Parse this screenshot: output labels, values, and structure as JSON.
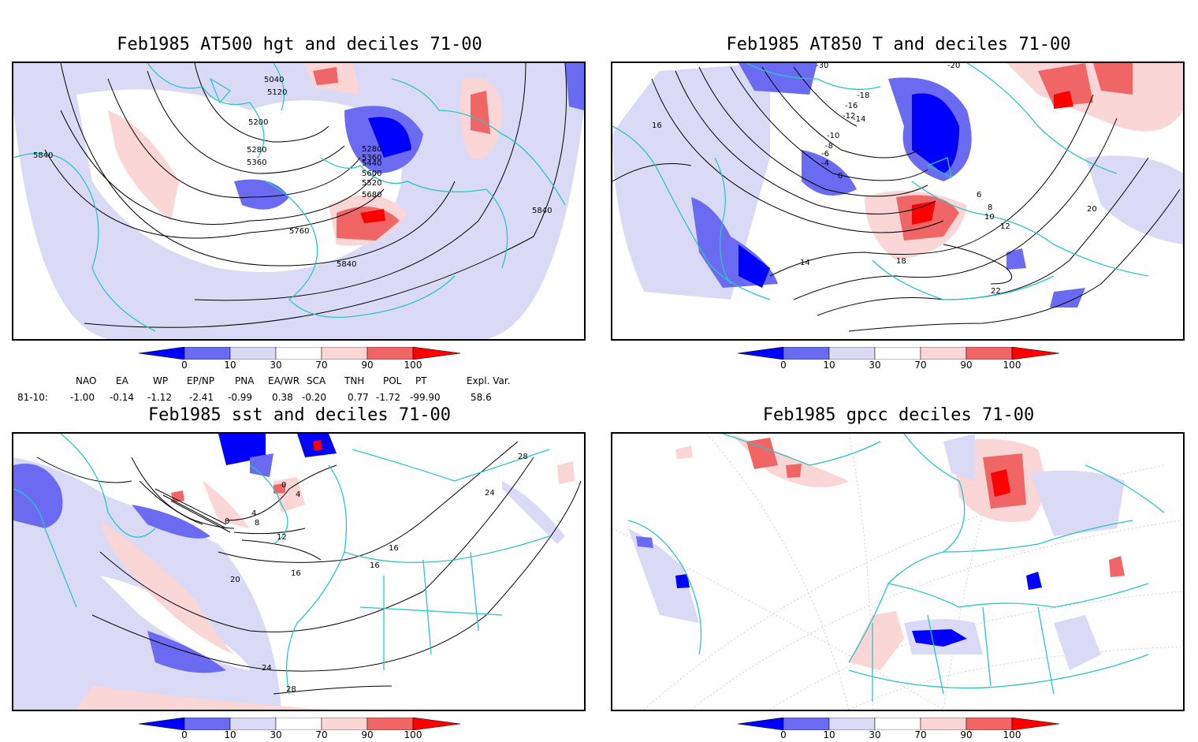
{
  "panels": [
    {
      "title": "Feb1985 AT500 hgt and deciles 71-00",
      "contour_labels": [
        "5040",
        "5120",
        "5200",
        "5280",
        "5360",
        "5440",
        "5520",
        "5600",
        "5680",
        "5760",
        "5840",
        "5280",
        "5360",
        "5840",
        "5840"
      ]
    },
    {
      "title": "Feb1985 AT850 T and deciles 71-00",
      "contour_labels": [
        "-30",
        "-20",
        "-18",
        "-16",
        "-14",
        "-12",
        "-10",
        "-8",
        "-6",
        "-4",
        "0",
        "6",
        "8",
        "10",
        "12",
        "14",
        "16",
        "18",
        "20",
        "22"
      ]
    },
    {
      "title": "Feb1985 sst and deciles 71-00",
      "contour_labels": [
        "0",
        "4",
        "8",
        "12",
        "16",
        "20",
        "24",
        "28",
        "0",
        "4",
        "16",
        "16",
        "24",
        "28"
      ]
    },
    {
      "title": "Feb1985 gpcc deciles 71-00",
      "contour_labels": []
    }
  ],
  "colorbar": {
    "labels": [
      "0",
      "10",
      "30",
      "70",
      "90",
      "100"
    ],
    "colors": [
      "#0000ff",
      "#6b6bf2",
      "#dadaf7",
      "#ffffff",
      "#fbd6d6",
      "#f06666",
      "#ff0000"
    ]
  },
  "indices": {
    "headers": [
      "NAO",
      "EA",
      "WP",
      "EP/NP",
      "PNA",
      "EA/WR",
      "SCA",
      "TNH",
      "POL",
      "PT",
      "Expl. Var."
    ],
    "row_label": "81-10:",
    "values": [
      "-1.00",
      "-0.14",
      "-1.12",
      "-2.41",
      "-0.99",
      "0.38",
      "-0.20",
      "0.77",
      "-1.72",
      "-99.90",
      "58.6"
    ]
  },
  "colors": {
    "coast": "#2ec4c4",
    "anomaly_blue": "#3e3ef5",
    "anomaly_red": "#ee4444"
  }
}
